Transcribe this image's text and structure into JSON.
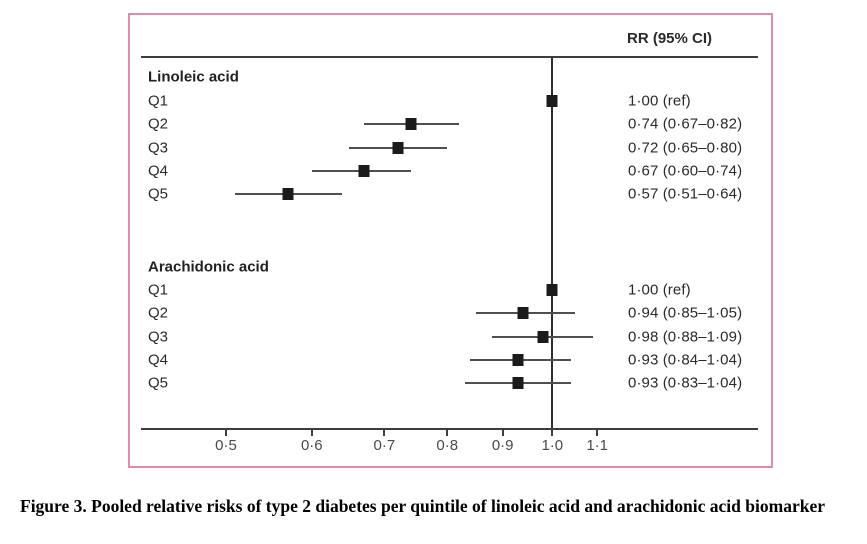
{
  "figure": {
    "column_header": "RR (95% CI)",
    "border_color": "#de8ca8"
  },
  "chart_data": {
    "type": "forest",
    "x_scale": "log",
    "x_ticks": [
      0.5,
      0.6,
      0.7,
      0.8,
      0.9,
      1.0,
      1.1
    ],
    "x_tick_labels": [
      "0·5",
      "0·6",
      "0·7",
      "0·8",
      "0·9",
      "1·0",
      "1·1"
    ],
    "xlim": [
      0.44,
      1.18
    ],
    "reference_line_x": 1.0,
    "grid": false,
    "legend": null,
    "column_header": "RR (95% CI)",
    "groups": [
      {
        "name": "Linoleic acid",
        "rows": [
          {
            "label": "Q1",
            "rr": 1.0,
            "lo": null,
            "hi": null,
            "text": "1·00 (ref)"
          },
          {
            "label": "Q2",
            "rr": 0.74,
            "lo": 0.67,
            "hi": 0.82,
            "text": "0·74 (0·67–0·82)"
          },
          {
            "label": "Q3",
            "rr": 0.72,
            "lo": 0.65,
            "hi": 0.8,
            "text": "0·72 (0·65–0·80)"
          },
          {
            "label": "Q4",
            "rr": 0.67,
            "lo": 0.6,
            "hi": 0.74,
            "text": "0·67 (0·60–0·74)"
          },
          {
            "label": "Q5",
            "rr": 0.57,
            "lo": 0.51,
            "hi": 0.64,
            "text": "0·57 (0·51–0·64)"
          }
        ]
      },
      {
        "name": "Arachidonic acid",
        "rows": [
          {
            "label": "Q1",
            "rr": 1.0,
            "lo": null,
            "hi": null,
            "text": "1·00 (ref)"
          },
          {
            "label": "Q2",
            "rr": 0.94,
            "lo": 0.85,
            "hi": 1.05,
            "text": "0·94 (0·85–1·05)"
          },
          {
            "label": "Q3",
            "rr": 0.98,
            "lo": 0.88,
            "hi": 1.09,
            "text": "0·98 (0·88–1·09)"
          },
          {
            "label": "Q4",
            "rr": 0.93,
            "lo": 0.84,
            "hi": 1.04,
            "text": "0·93 (0·84–1·04)"
          },
          {
            "label": "Q5",
            "rr": 0.93,
            "lo": 0.83,
            "hi": 1.04,
            "text": "0·93 (0·83–1·04)"
          }
        ]
      }
    ]
  },
  "caption": {
    "text": "Figure 3. Pooled relative risks of type 2 diabetes per quintile of linoleic acid and arachidonic acid biomarker"
  }
}
